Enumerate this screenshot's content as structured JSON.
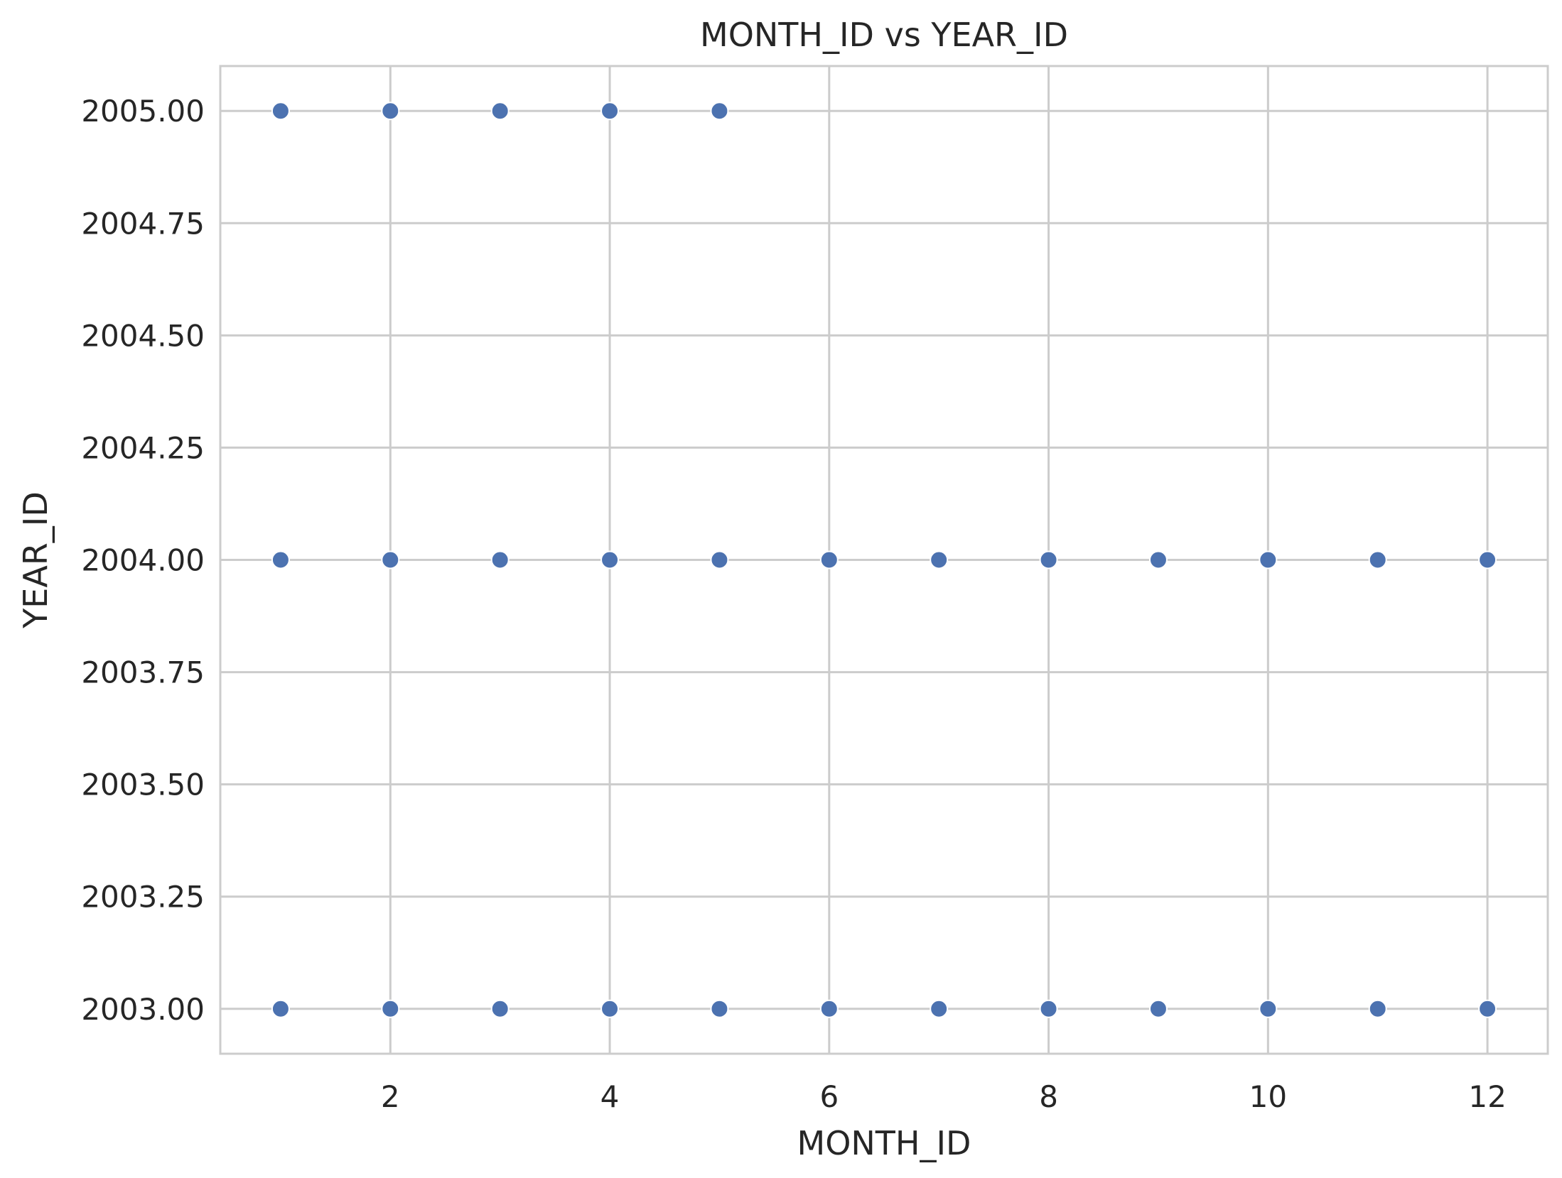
{
  "chart_data": {
    "type": "scatter",
    "title": "MONTH_ID vs YEAR_ID",
    "xlabel": "MONTH_ID",
    "ylabel": "YEAR_ID",
    "xlim": [
      0.45,
      12.55
    ],
    "ylim": [
      2002.9,
      2005.1
    ],
    "xticks": [
      2,
      4,
      6,
      8,
      10,
      12
    ],
    "xtick_labels": [
      "2",
      "4",
      "6",
      "8",
      "10",
      "12"
    ],
    "yticks": [
      2003.0,
      2003.25,
      2003.5,
      2003.75,
      2004.0,
      2004.25,
      2004.5,
      2004.75,
      2005.0
    ],
    "ytick_labels": [
      "2003.00",
      "2003.25",
      "2003.50",
      "2003.75",
      "2004.00",
      "2004.25",
      "2004.50",
      "2004.75",
      "2005.00"
    ],
    "grid": true,
    "legend": "none",
    "point_color": "#4c72b0",
    "grid_color": "#cccccc",
    "series": [
      {
        "points": [
          {
            "x": 1,
            "y": 2003
          },
          {
            "x": 2,
            "y": 2003
          },
          {
            "x": 3,
            "y": 2003
          },
          {
            "x": 4,
            "y": 2003
          },
          {
            "x": 5,
            "y": 2003
          },
          {
            "x": 6,
            "y": 2003
          },
          {
            "x": 7,
            "y": 2003
          },
          {
            "x": 8,
            "y": 2003
          },
          {
            "x": 9,
            "y": 2003
          },
          {
            "x": 10,
            "y": 2003
          },
          {
            "x": 11,
            "y": 2003
          },
          {
            "x": 12,
            "y": 2003
          },
          {
            "x": 1,
            "y": 2004
          },
          {
            "x": 2,
            "y": 2004
          },
          {
            "x": 3,
            "y": 2004
          },
          {
            "x": 4,
            "y": 2004
          },
          {
            "x": 5,
            "y": 2004
          },
          {
            "x": 6,
            "y": 2004
          },
          {
            "x": 7,
            "y": 2004
          },
          {
            "x": 8,
            "y": 2004
          },
          {
            "x": 9,
            "y": 2004
          },
          {
            "x": 10,
            "y": 2004
          },
          {
            "x": 11,
            "y": 2004
          },
          {
            "x": 12,
            "y": 2004
          },
          {
            "x": 1,
            "y": 2005
          },
          {
            "x": 2,
            "y": 2005
          },
          {
            "x": 3,
            "y": 2005
          },
          {
            "x": 4,
            "y": 2005
          },
          {
            "x": 5,
            "y": 2005
          }
        ]
      }
    ]
  }
}
